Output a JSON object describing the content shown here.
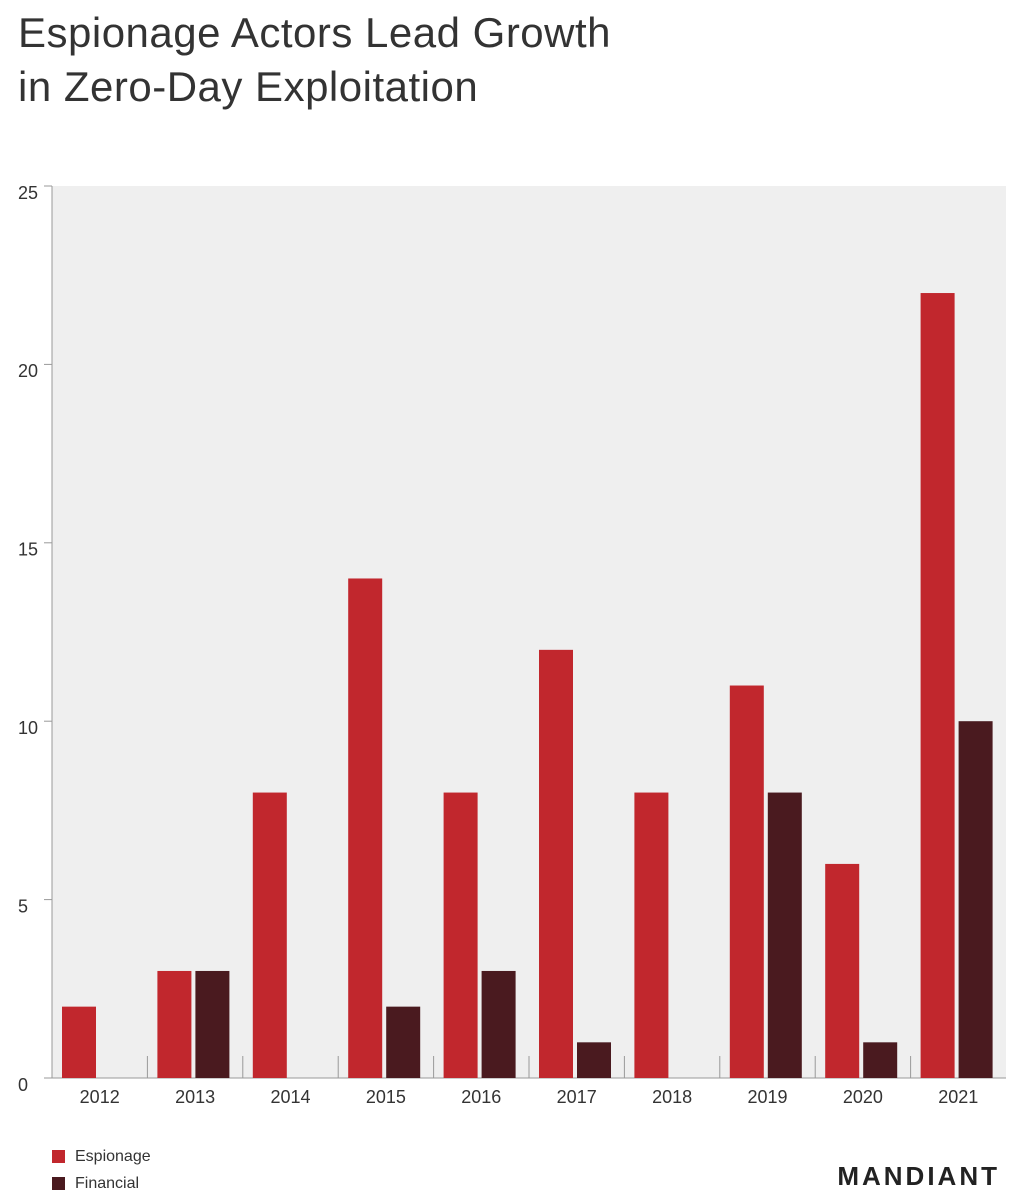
{
  "chart_data": {
    "type": "bar",
    "title": "Espionage Actors Lead Growth in Zero-Day Exploitation",
    "categories": [
      "2012",
      "2013",
      "2014",
      "2015",
      "2016",
      "2017",
      "2018",
      "2019",
      "2020",
      "2021"
    ],
    "series": [
      {
        "name": "Espionage",
        "color": "#c1272d",
        "values": [
          2,
          3,
          8,
          14,
          8,
          12,
          8,
          11,
          6,
          22
        ]
      },
      {
        "name": "Financial",
        "color": "#4a1a1f",
        "values": [
          0,
          3,
          0,
          2,
          3,
          1,
          0,
          8,
          1,
          10
        ]
      }
    ],
    "ylim": [
      0,
      25
    ],
    "yticks": [
      0,
      5,
      10,
      15,
      20,
      25
    ],
    "legend": "bottom-left",
    "logo": "MANDIANT"
  }
}
